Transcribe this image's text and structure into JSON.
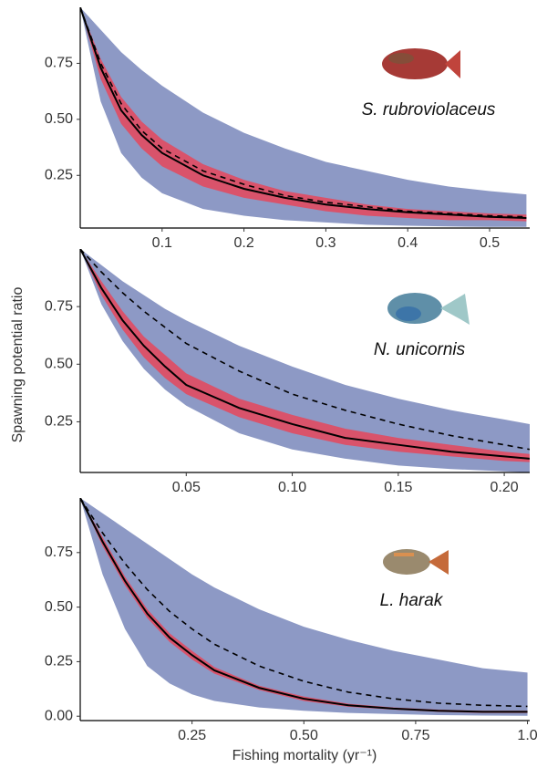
{
  "y_label": "Spawning potential ratio",
  "x_label": "Fishing mortality (yr⁻¹)",
  "chart_data": [
    {
      "type": "line",
      "annotation": "S. rubroviolaceus",
      "x": [
        0,
        0.025,
        0.05,
        0.075,
        0.1,
        0.15,
        0.2,
        0.25,
        0.3,
        0.35,
        0.4,
        0.45,
        0.5,
        0.545
      ],
      "bands": [
        {
          "color": "#8d99c5",
          "lower": [
            1,
            0.58,
            0.35,
            0.24,
            0.17,
            0.1,
            0.07,
            0.05,
            0.04,
            0.03,
            0.025,
            0.022,
            0.02,
            0.02
          ],
          "upper": [
            1,
            0.9,
            0.8,
            0.72,
            0.65,
            0.53,
            0.44,
            0.37,
            0.31,
            0.27,
            0.23,
            0.2,
            0.18,
            0.165
          ]
        },
        {
          "color": "#d9536b",
          "lower": [
            1,
            0.68,
            0.48,
            0.37,
            0.29,
            0.2,
            0.15,
            0.12,
            0.09,
            0.07,
            0.06,
            0.05,
            0.05,
            0.045
          ],
          "upper": [
            1,
            0.77,
            0.6,
            0.49,
            0.41,
            0.3,
            0.23,
            0.18,
            0.15,
            0.12,
            0.1,
            0.09,
            0.08,
            0.075
          ]
        }
      ],
      "series": [
        {
          "color": "#000000",
          "style": "dashed",
          "values": [
            1,
            0.75,
            0.57,
            0.45,
            0.37,
            0.27,
            0.21,
            0.16,
            0.13,
            0.11,
            0.09,
            0.08,
            0.07,
            0.065
          ]
        },
        {
          "color": "#000000",
          "style": "solid",
          "values": [
            1,
            0.73,
            0.54,
            0.43,
            0.35,
            0.25,
            0.19,
            0.15,
            0.12,
            0.1,
            0.085,
            0.075,
            0.065,
            0.06
          ]
        }
      ],
      "xlim": [
        0,
        0.549
      ],
      "ylim": [
        0.015,
        1.0
      ],
      "xticks": [
        0.1,
        0.2,
        0.3,
        0.4,
        0.5
      ],
      "yticks": [
        {
          "value": 0.25,
          "label": "0.25"
        },
        {
          "value": 0.5,
          "label": "0.50"
        },
        {
          "value": 0.75,
          "label": "0.75"
        }
      ]
    },
    {
      "type": "line",
      "annotation": "N. unicornis",
      "x": [
        0,
        0.01,
        0.02,
        0.03,
        0.04,
        0.05,
        0.075,
        0.1,
        0.125,
        0.15,
        0.175,
        0.2,
        0.212
      ],
      "bands": [
        {
          "color": "#8d99c5",
          "lower": [
            1,
            0.76,
            0.6,
            0.48,
            0.39,
            0.32,
            0.2,
            0.13,
            0.09,
            0.06,
            0.045,
            0.035,
            0.03
          ],
          "upper": [
            1,
            0.93,
            0.86,
            0.8,
            0.74,
            0.69,
            0.58,
            0.49,
            0.41,
            0.35,
            0.3,
            0.26,
            0.24
          ]
        },
        {
          "color": "#d9536b",
          "lower": [
            1,
            0.8,
            0.65,
            0.53,
            0.44,
            0.37,
            0.27,
            0.2,
            0.15,
            0.12,
            0.1,
            0.08,
            0.075
          ],
          "upper": [
            1,
            0.86,
            0.73,
            0.62,
            0.54,
            0.46,
            0.35,
            0.28,
            0.22,
            0.18,
            0.15,
            0.12,
            0.11
          ]
        }
      ],
      "series": [
        {
          "color": "#000000",
          "style": "dashed",
          "values": [
            1,
            0.9,
            0.81,
            0.73,
            0.66,
            0.59,
            0.47,
            0.37,
            0.3,
            0.24,
            0.19,
            0.15,
            0.13
          ]
        },
        {
          "color": "#000000",
          "style": "solid",
          "values": [
            1,
            0.83,
            0.69,
            0.58,
            0.49,
            0.41,
            0.31,
            0.24,
            0.18,
            0.15,
            0.12,
            0.1,
            0.09
          ]
        }
      ],
      "xlim": [
        0,
        0.212
      ],
      "ylim": [
        0.03,
        1.0
      ],
      "xticks": [
        {
          "value": 0.05,
          "label": "0.05"
        },
        {
          "value": 0.1,
          "label": "0.10"
        },
        {
          "value": 0.15,
          "label": "0.15"
        },
        {
          "value": 0.2,
          "label": "0.20"
        }
      ],
      "yticks": [
        {
          "value": 0.25,
          "label": "0.25"
        },
        {
          "value": 0.5,
          "label": "0.50"
        },
        {
          "value": 0.75,
          "label": "0.75"
        }
      ]
    },
    {
      "type": "line",
      "annotation": "L. harak",
      "x": [
        0,
        0.05,
        0.1,
        0.15,
        0.2,
        0.25,
        0.3,
        0.4,
        0.5,
        0.6,
        0.7,
        0.8,
        0.9,
        1.0
      ],
      "bands": [
        {
          "color": "#8d99c5",
          "lower": [
            1,
            0.65,
            0.4,
            0.23,
            0.15,
            0.1,
            0.07,
            0.04,
            0.025,
            0.015,
            0.01,
            0.005,
            0.003,
            0.002
          ],
          "upper": [
            1,
            0.93,
            0.86,
            0.79,
            0.72,
            0.65,
            0.59,
            0.49,
            0.41,
            0.35,
            0.3,
            0.26,
            0.22,
            0.2
          ]
        },
        {
          "color": "#d9536b",
          "lower": [
            1,
            0.78,
            0.6,
            0.45,
            0.34,
            0.26,
            0.195,
            0.12,
            0.07,
            0.043,
            0.03,
            0.02,
            0.015,
            0.015
          ],
          "upper": [
            1,
            0.82,
            0.64,
            0.49,
            0.38,
            0.3,
            0.225,
            0.14,
            0.09,
            0.057,
            0.04,
            0.03,
            0.025,
            0.025
          ]
        }
      ],
      "series": [
        {
          "color": "#000000",
          "style": "dashed",
          "values": [
            1,
            0.84,
            0.7,
            0.58,
            0.48,
            0.4,
            0.33,
            0.23,
            0.16,
            0.11,
            0.08,
            0.06,
            0.05,
            0.045
          ]
        },
        {
          "color": "#000000",
          "style": "solid",
          "values": [
            1,
            0.8,
            0.62,
            0.47,
            0.36,
            0.28,
            0.21,
            0.13,
            0.08,
            0.05,
            0.035,
            0.025,
            0.02,
            0.02
          ]
        }
      ],
      "xlim": [
        0,
        1.005
      ],
      "ylim": [
        -0.02,
        1.0
      ],
      "xticks": [
        {
          "value": 0.25,
          "label": "0.25"
        },
        {
          "value": 0.5,
          "label": "0.50"
        },
        {
          "value": 0.75,
          "label": "0.75"
        },
        {
          "value": 1.0,
          "label": "1.0"
        }
      ],
      "yticks": [
        {
          "value": 0,
          "label": "0.00"
        },
        {
          "value": 0.25,
          "label": "0.25"
        },
        {
          "value": 0.5,
          "label": "0.50"
        },
        {
          "value": 0.75,
          "label": "0.75"
        }
      ]
    }
  ]
}
